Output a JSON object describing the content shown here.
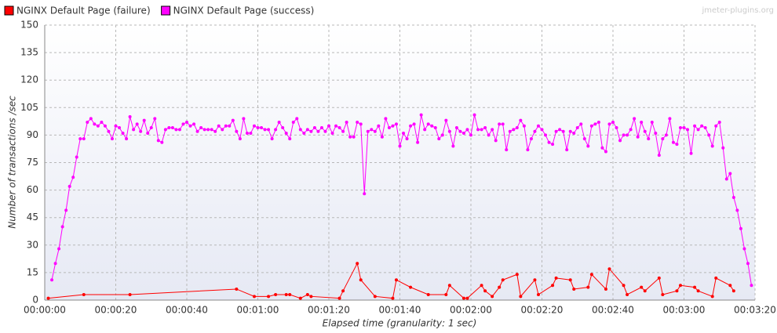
{
  "chart_data": {
    "type": "line",
    "watermark": "jmeter-plugins.org",
    "x_label": "Elapsed time (granularity: 1 sec)",
    "y_label": "Number of transactions /sec",
    "xlim": [
      0,
      200
    ],
    "ylim": [
      0,
      150
    ],
    "grid": true,
    "legend": "top",
    "xticks": [
      {
        "value": 0,
        "label": "00:00:00"
      },
      {
        "value": 20,
        "label": "00:00:20"
      },
      {
        "value": 40,
        "label": "00:00:40"
      },
      {
        "value": 60,
        "label": "00:01:00"
      },
      {
        "value": 80,
        "label": "00:01:20"
      },
      {
        "value": 100,
        "label": "00:01:40"
      },
      {
        "value": 120,
        "label": "00:02:00"
      },
      {
        "value": 140,
        "label": "00:02:20"
      },
      {
        "value": 160,
        "label": "00:02:40"
      },
      {
        "value": 180,
        "label": "00:03:00"
      },
      {
        "value": 200,
        "label": "00:03:20"
      }
    ],
    "yticks": [
      0,
      15,
      30,
      45,
      60,
      75,
      90,
      105,
      120,
      135,
      150
    ],
    "series": [
      {
        "name": "NGINX Default Page (failure)",
        "color": "#ff0000",
        "x": [
          1,
          11,
          24,
          54,
          59,
          63,
          65,
          68,
          69,
          72,
          74,
          75,
          83,
          84,
          88,
          89,
          93,
          98,
          99,
          103,
          108,
          113,
          114,
          118,
          119,
          123,
          124,
          126,
          128,
          129,
          133,
          134,
          138,
          139,
          143,
          144,
          148,
          149,
          153,
          154,
          158,
          159,
          163,
          164,
          168,
          169,
          173,
          174,
          178,
          179,
          183,
          184,
          188,
          189,
          193,
          194
        ],
        "values": [
          1,
          3,
          3,
          6,
          2,
          2,
          3,
          3,
          3,
          1,
          3,
          2,
          1,
          5,
          20,
          11,
          2,
          1,
          11,
          7,
          3,
          3,
          8,
          1,
          1,
          8,
          5,
          2,
          7,
          11,
          14,
          2,
          11,
          3,
          8,
          12,
          11,
          6,
          7,
          14,
          6,
          17,
          8,
          3,
          7,
          5,
          12,
          3,
          5,
          8,
          7,
          5,
          2,
          12,
          8,
          5
        ]
      },
      {
        "name": "NGINX Default Page (success)",
        "color": "#ff00ff",
        "x": [
          2,
          3,
          4,
          5,
          6,
          7,
          8,
          9,
          10,
          11,
          12,
          13,
          14,
          15,
          16,
          17,
          18,
          19,
          20,
          21,
          22,
          23,
          24,
          25,
          26,
          27,
          28,
          29,
          30,
          31,
          32,
          33,
          34,
          35,
          36,
          37,
          38,
          39,
          40,
          41,
          42,
          43,
          44,
          45,
          46,
          47,
          48,
          49,
          50,
          51,
          52,
          53,
          54,
          55,
          56,
          57,
          58,
          59,
          60,
          61,
          62,
          63,
          64,
          65,
          66,
          67,
          68,
          69,
          70,
          71,
          72,
          73,
          74,
          75,
          76,
          77,
          78,
          79,
          80,
          81,
          82,
          83,
          84,
          85,
          86,
          87,
          88,
          89,
          90,
          91,
          92,
          93,
          94,
          95,
          96,
          97,
          98,
          99,
          100,
          101,
          102,
          103,
          104,
          105,
          106,
          107,
          108,
          109,
          110,
          111,
          112,
          113,
          114,
          115,
          116,
          117,
          118,
          119,
          120,
          121,
          122,
          123,
          124,
          125,
          126,
          127,
          128,
          129,
          130,
          131,
          132,
          133,
          134,
          135,
          136,
          137,
          138,
          139,
          140,
          141,
          142,
          143,
          144,
          145,
          146,
          147,
          148,
          149,
          150,
          151,
          152,
          153,
          154,
          155,
          156,
          157,
          158,
          159,
          160,
          161,
          162,
          163,
          164,
          165,
          166,
          167,
          168,
          169,
          170,
          171,
          172,
          173,
          174,
          175,
          176,
          177,
          178,
          179,
          180,
          181,
          182,
          183,
          184,
          185,
          186,
          187,
          188,
          189,
          190,
          191,
          192,
          193,
          194,
          195,
          196,
          197,
          198,
          199
        ],
        "values": [
          11,
          20,
          28,
          40,
          49,
          62,
          67,
          78,
          88,
          88,
          97,
          99,
          96,
          95,
          97,
          95,
          92,
          88,
          95,
          94,
          91,
          88,
          100,
          93,
          96,
          92,
          98,
          91,
          94,
          99,
          87,
          86,
          93,
          94,
          94,
          93,
          93,
          96,
          97,
          95,
          96,
          92,
          94,
          93,
          93,
          93,
          92,
          95,
          93,
          95,
          95,
          98,
          92,
          88,
          99,
          91,
          91,
          95,
          94,
          94,
          93,
          93,
          88,
          93,
          97,
          94,
          91,
          88,
          97,
          99,
          93,
          91,
          93,
          92,
          94,
          92,
          94,
          92,
          95,
          91,
          95,
          94,
          92,
          97,
          89,
          89,
          97,
          96,
          58,
          92,
          93,
          92,
          95,
          89,
          99,
          94,
          95,
          96,
          84,
          91,
          88,
          95,
          96,
          86,
          101,
          93,
          96,
          95,
          94,
          88,
          90,
          98,
          92,
          84,
          94,
          92,
          91,
          93,
          90,
          101,
          93,
          93,
          94,
          90,
          93,
          87,
          96,
          96,
          82,
          92,
          93,
          94,
          98,
          95,
          82,
          88,
          92,
          95,
          93,
          90,
          86,
          85,
          92,
          93,
          92,
          82,
          92,
          91,
          94,
          96,
          88,
          84,
          95,
          96,
          97,
          83,
          81,
          96,
          97,
          94,
          87,
          90,
          90,
          93,
          99,
          89,
          97,
          92,
          88,
          97,
          91,
          79,
          88,
          90,
          99,
          86,
          85,
          94,
          94,
          93,
          80,
          95,
          93,
          95,
          94,
          90,
          84,
          95,
          97,
          83,
          66,
          69,
          56,
          49,
          39,
          28,
          20,
          8
        ]
      }
    ]
  }
}
